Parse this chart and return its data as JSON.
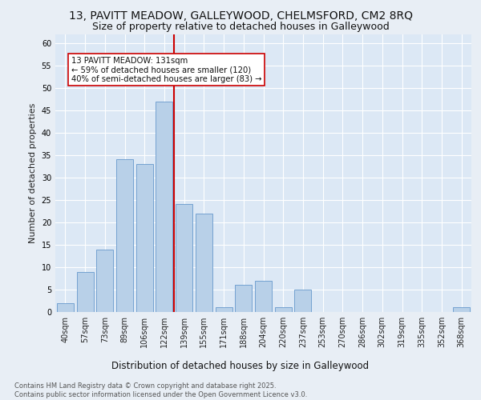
{
  "title1": "13, PAVITT MEADOW, GALLEYWOOD, CHELMSFORD, CM2 8RQ",
  "title2": "Size of property relative to detached houses in Galleywood",
  "xlabel": "Distribution of detached houses by size in Galleywood",
  "ylabel": "Number of detached properties",
  "categories": [
    "40sqm",
    "57sqm",
    "73sqm",
    "89sqm",
    "106sqm",
    "122sqm",
    "139sqm",
    "155sqm",
    "171sqm",
    "188sqm",
    "204sqm",
    "220sqm",
    "237sqm",
    "253sqm",
    "270sqm",
    "286sqm",
    "302sqm",
    "319sqm",
    "335sqm",
    "352sqm",
    "368sqm"
  ],
  "values": [
    2,
    9,
    14,
    34,
    33,
    47,
    24,
    22,
    1,
    6,
    7,
    1,
    5,
    0,
    0,
    0,
    0,
    0,
    0,
    0,
    1
  ],
  "bar_color": "#b8d0e8",
  "bar_edge_color": "#6699cc",
  "vline_x": 5.5,
  "vline_color": "#cc0000",
  "annotation_text": "13 PAVITT MEADOW: 131sqm\n← 59% of detached houses are smaller (120)\n40% of semi-detached houses are larger (83) →",
  "annotation_box_color": "#ffffff",
  "annotation_box_edge": "#cc0000",
  "fig_bg_color": "#e8eef5",
  "plot_bg_color": "#dce8f5",
  "ylim": [
    0,
    62
  ],
  "yticks": [
    0,
    5,
    10,
    15,
    20,
    25,
    30,
    35,
    40,
    45,
    50,
    55,
    60
  ],
  "footer": "Contains HM Land Registry data © Crown copyright and database right 2025.\nContains public sector information licensed under the Open Government Licence v3.0.",
  "title1_fontsize": 10,
  "title2_fontsize": 9,
  "xlabel_fontsize": 8.5,
  "ylabel_fontsize": 8,
  "tick_fontsize": 7,
  "footer_fontsize": 6
}
